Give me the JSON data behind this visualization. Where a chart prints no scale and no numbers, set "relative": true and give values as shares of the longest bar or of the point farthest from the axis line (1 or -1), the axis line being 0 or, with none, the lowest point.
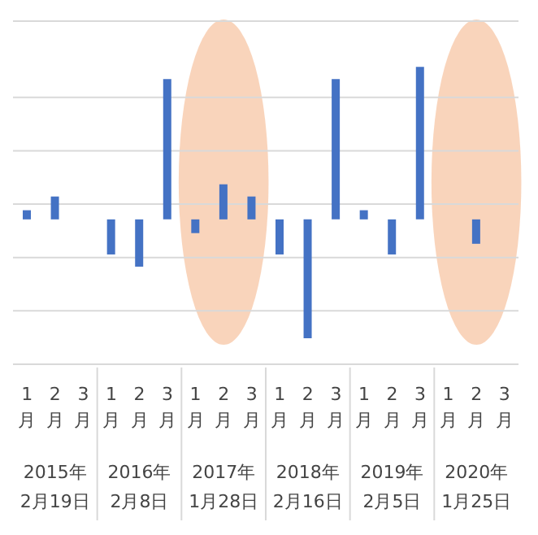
{
  "chart_data": {
    "type": "bar",
    "relative": true,
    "grid": "y",
    "color": "#4472c4",
    "categories": [
      "1月",
      "2月",
      "3月",
      "1月",
      "2月",
      "3月",
      "1月",
      "2月",
      "3月",
      "1月",
      "2月",
      "3月",
      "1月",
      "2月",
      "3月",
      "1月",
      "2月",
      "3月"
    ],
    "values": [
      0.06,
      0.15,
      null,
      -0.23,
      -0.31,
      0.92,
      -0.09,
      0.23,
      0.15,
      -0.23,
      -0.78,
      0.92,
      0.06,
      -0.23,
      1,
      null,
      -0.16,
      null
    ],
    "annotations": [
      "2015年\n2月19日",
      "2016年\n2月8日",
      "2017年\n1月28日",
      "2018年\n2月16日",
      "2019年\n2月5日",
      "2020年\n1月25日"
    ]
  }
}
